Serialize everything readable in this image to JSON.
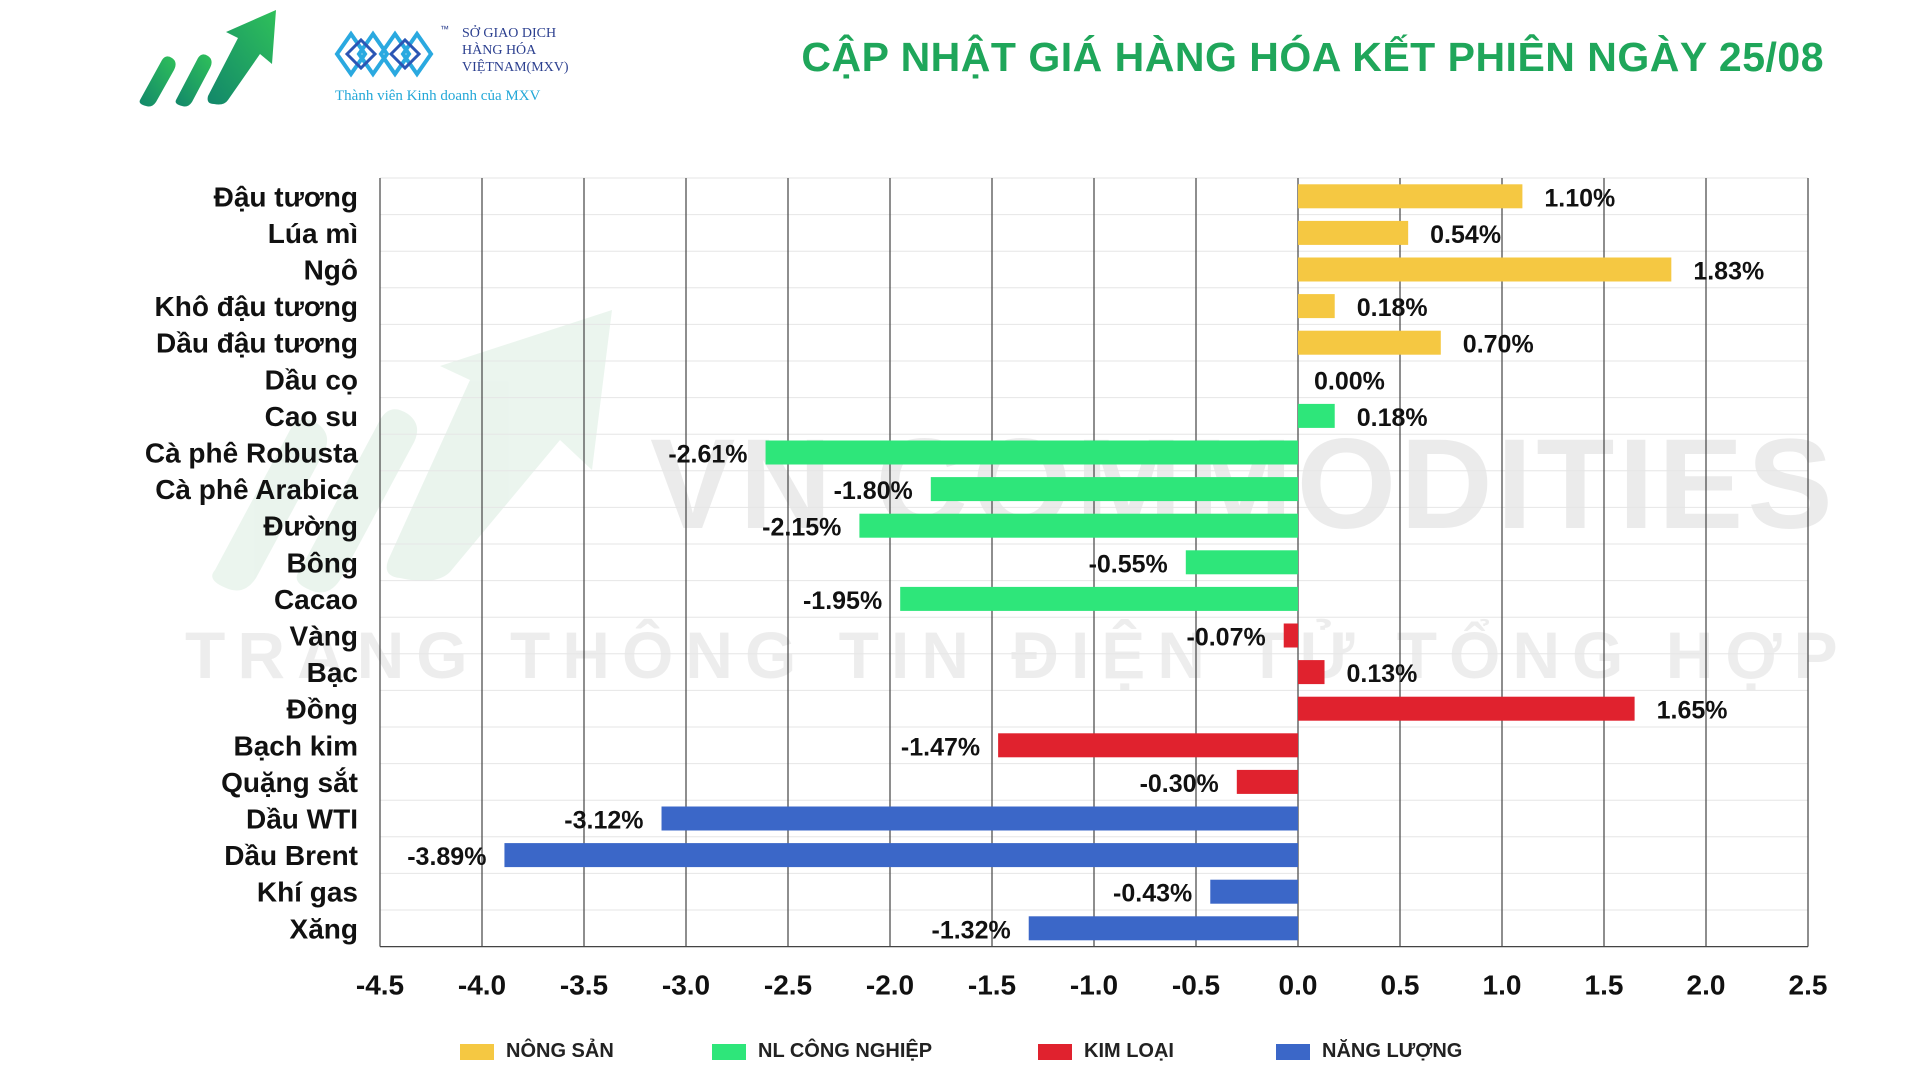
{
  "header": {
    "title": "CẬP NHẬT GIÁ HÀNG HÓA KẾT PHIÊN NGÀY 25/08",
    "mxv_line1": "SỞ GIAO DỊCH",
    "mxv_line2": "HÀNG HÓA",
    "mxv_line3": "VIỆTNAM(MXV)",
    "mxv_sub": "Thành viên Kinh doanh của MXV",
    "trademark": "™",
    "brand_color": "#1fa65a"
  },
  "watermark": {
    "line1": "VN COMMODITIES",
    "line2": "TRANG THÔNG TIN ĐIỆN TỬ TỔNG HỢP"
  },
  "icons": {
    "logo": "growth-arrow-logo-icon",
    "mxv": "mxv-diamond-logo-icon"
  },
  "chart_data": {
    "type": "bar",
    "orientation": "horizontal",
    "categories": [
      "Đậu tương",
      "Lúa mì",
      "Ngô",
      "Khô đậu tương",
      "Dầu đậu tương",
      "Dầu cọ",
      "Cao su",
      "Cà phê Robusta",
      "Cà phê Arabica",
      "Đường",
      "Bông",
      "Cacao",
      "Vàng",
      "Bạc",
      "Đồng",
      "Bạch kim",
      "Quặng sắt",
      "Dầu WTI",
      "Dầu Brent",
      "Khí gas",
      "Xăng"
    ],
    "values": [
      1.1,
      0.54,
      1.83,
      0.18,
      0.7,
      0.0,
      0.18,
      -2.61,
      -1.8,
      -2.15,
      -0.55,
      -1.95,
      -0.07,
      0.13,
      1.65,
      -1.47,
      -0.3,
      -3.12,
      -3.89,
      -0.43,
      -1.32
    ],
    "value_labels": [
      "1.10%",
      "0.54%",
      "1.83%",
      "0.18%",
      "0.70%",
      "0.00%",
      "0.18%",
      "-2.61%",
      "-1.80%",
      "-2.15%",
      "-0.55%",
      "-1.95%",
      "-0.07%",
      "0.13%",
      "1.65%",
      "-1.47%",
      "-0.30%",
      "-3.12%",
      "-3.89%",
      "-0.43%",
      "-1.32%"
    ],
    "group_index": [
      0,
      0,
      0,
      0,
      0,
      0,
      1,
      1,
      1,
      1,
      1,
      1,
      2,
      2,
      2,
      2,
      2,
      3,
      3,
      3,
      3
    ],
    "groups": [
      {
        "name": "NÔNG SẢN",
        "color": "#f5c842"
      },
      {
        "name": "NL CÔNG NGHIỆP",
        "color": "#2ee67a"
      },
      {
        "name": "KIM LOẠI",
        "color": "#e0222e"
      },
      {
        "name": "NĂNG LƯỢNG",
        "color": "#3b67c8"
      }
    ],
    "xlim": [
      -4.5,
      2.5
    ],
    "xticks": [
      -4.5,
      -4.0,
      -3.5,
      -3.0,
      -2.5,
      -2.0,
      -1.5,
      -1.0,
      -0.5,
      0.0,
      0.5,
      1.0,
      1.5,
      2.0,
      2.5
    ],
    "xtick_labels": [
      "-4.5",
      "-4.0",
      "-3.5",
      "-3.0",
      "-2.5",
      "-2.0",
      "-1.5",
      "-1.0",
      "-0.5",
      "0.0",
      "0.5",
      "1.0",
      "1.5",
      "2.0",
      "2.5"
    ],
    "grid": true,
    "legend_position": "bottom"
  }
}
